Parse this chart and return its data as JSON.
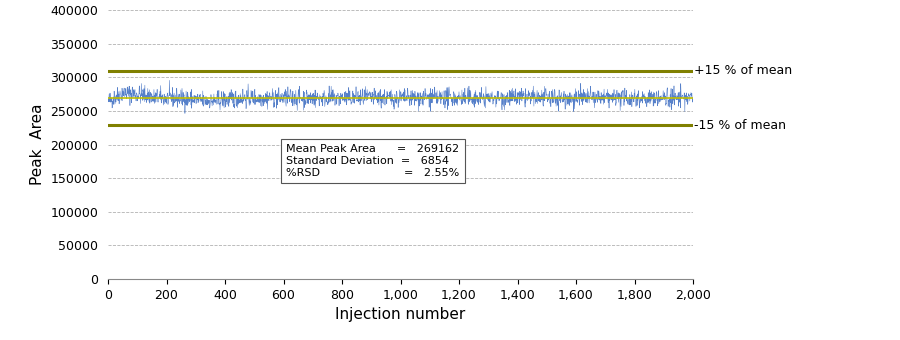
{
  "mean": 269162,
  "std": 6854,
  "rsd": "2.55%",
  "n_injections": 2000,
  "plus15_pct": 309536,
  "minus15_pct": 228788,
  "ylabel": "Peak  Area",
  "xlabel": "Injection number",
  "ylim": [
    0,
    400000
  ],
  "yticks": [
    0,
    50000,
    100000,
    150000,
    200000,
    250000,
    300000,
    350000,
    400000
  ],
  "xticks": [
    0,
    200,
    400,
    600,
    800,
    1000,
    1200,
    1400,
    1600,
    1800,
    2000
  ],
  "line_color": "#4472C4",
  "mean_line_color": "#BFBF00",
  "band_color": "#808000",
  "background_color": "#FFFFFF",
  "plus15_label": "+15 % of mean",
  "minus15_label": "-15 % of mean",
  "axis_fontsize": 11,
  "tick_fontsize": 9,
  "ann_text_line1": "Mean Peak Area      =   269162",
  "ann_text_line2": "Standard Deviation  =   6854",
  "ann_text_line3": "%RSD                        =   2.55%"
}
